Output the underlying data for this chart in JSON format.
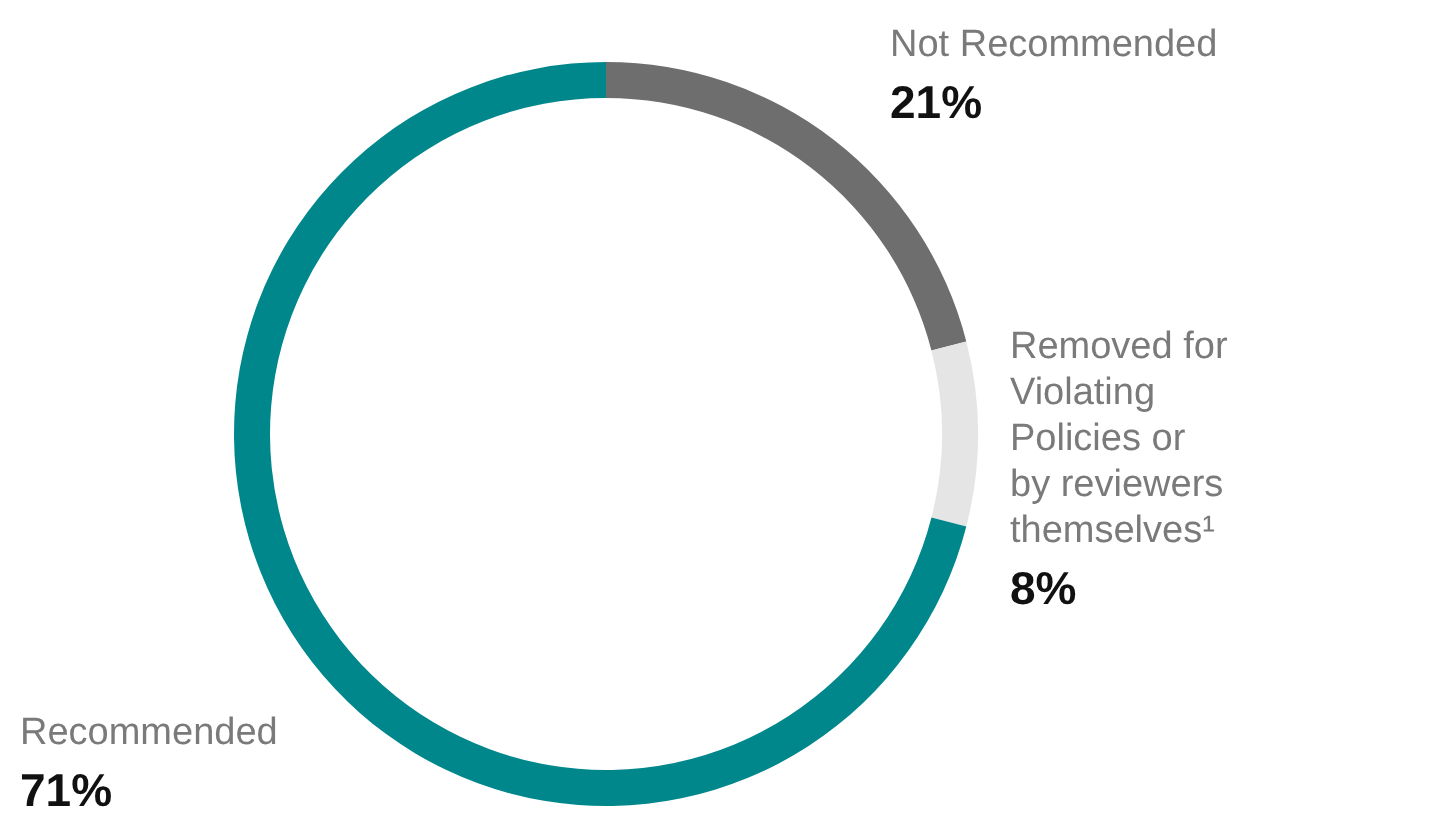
{
  "chart_data": {
    "type": "donut",
    "categories": [
      "Not Recommended",
      "Removed for Violating Policies or by reviewers themselves¹",
      "Recommended"
    ],
    "values": [
      21,
      8,
      71
    ],
    "colors": [
      "#6e6e6e",
      "#e5e5e5",
      "#00878b"
    ],
    "value_labels": [
      "21%",
      "8%",
      "71%"
    ]
  }
}
